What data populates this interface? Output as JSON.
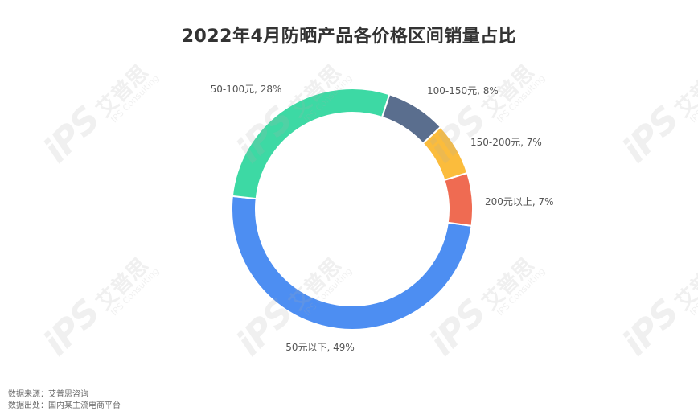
{
  "chart_data": {
    "type": "pie",
    "donut": true,
    "title": "2022年4月防晒产品各价格区间销量占比",
    "slices": [
      {
        "label": "50元以下",
        "value": 49,
        "color": "#4d8ef2"
      },
      {
        "label": "50-100元",
        "value": 28,
        "color": "#3dd9a4"
      },
      {
        "label": "100-150元",
        "value": 8,
        "color": "#5a6e8e"
      },
      {
        "label": "150-200元",
        "value": 7,
        "color": "#fbbc3c"
      },
      {
        "label": "200元以上",
        "value": 7,
        "color": "#ef6b52"
      }
    ],
    "value_suffix": "%",
    "label_separator": ", "
  },
  "watermark": {
    "logo_text": "iPS",
    "cn_text": "艾普思",
    "en_text": "IPS Consulting"
  },
  "source": {
    "line1": "数据来源：艾普思咨询",
    "line2": "数据出处：国内某主流电商平台"
  }
}
